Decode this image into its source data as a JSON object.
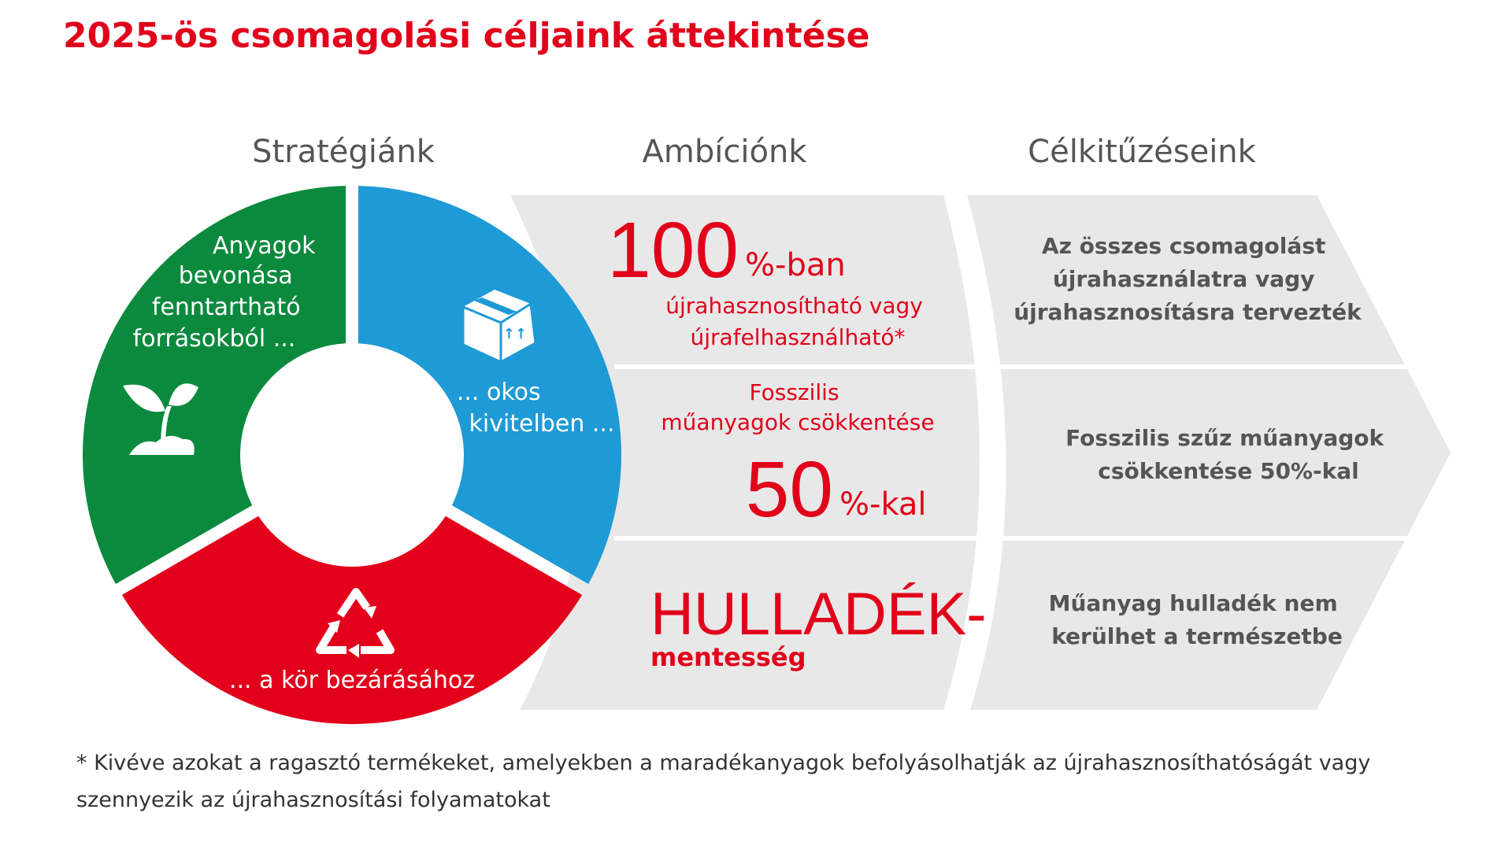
{
  "title": "2025-ös csomagolási céljaink áttekintése",
  "colors": {
    "red": "#e2001a",
    "green": "#0b8a3e",
    "blue": "#1e9ad6",
    "grey_panel": "#e8e8e8",
    "grey_text": "#555555"
  },
  "columns": {
    "strategy": "Stratégiánk",
    "ambition": "Ambíciónk",
    "goals": "Célkitűzéseink"
  },
  "strategy": {
    "green": {
      "icon": "plant-sprout-icon",
      "lines": [
        "Anyagok",
        "bevonása",
        "fenntartható",
        "forrásokból ..."
      ]
    },
    "blue": {
      "icon": "box-icon",
      "lines": [
        "... okos",
        "kivitelben ..."
      ]
    },
    "red": {
      "icon": "recycle-icon",
      "lines": [
        "... a kör bezárásához"
      ]
    }
  },
  "ambition": {
    "row1": {
      "big": "100",
      "suffix": "%-ban",
      "lines": [
        "újrahasznosítható vagy",
        "újrafelhasználható*"
      ]
    },
    "row2": {
      "lines": [
        "Fosszilis",
        "műanyagok csökkentése"
      ],
      "big": "50",
      "suffix": "%-kal"
    },
    "row3": {
      "big": "HULLADÉK-",
      "sub": "mentesség"
    }
  },
  "goals": {
    "row1": [
      "Az összes csomagolást",
      "újrahasználatra vagy",
      "újrahasznosításra tervezték"
    ],
    "row2": [
      "Fosszilis szűz műanyagok",
      "csökkentése 50%-kal"
    ],
    "row3": [
      "Műanyag hulladék nem",
      "kerülhet a természetbe"
    ]
  },
  "footnote": {
    "line1": "* Kivéve azokat a ragasztó termékeket, amelyekben a maradékanyagok befolyásolhatják az újrahasznosíthatóságát vagy",
    "line2": "szennyezik az újrahasznosítási folyamatokat"
  }
}
